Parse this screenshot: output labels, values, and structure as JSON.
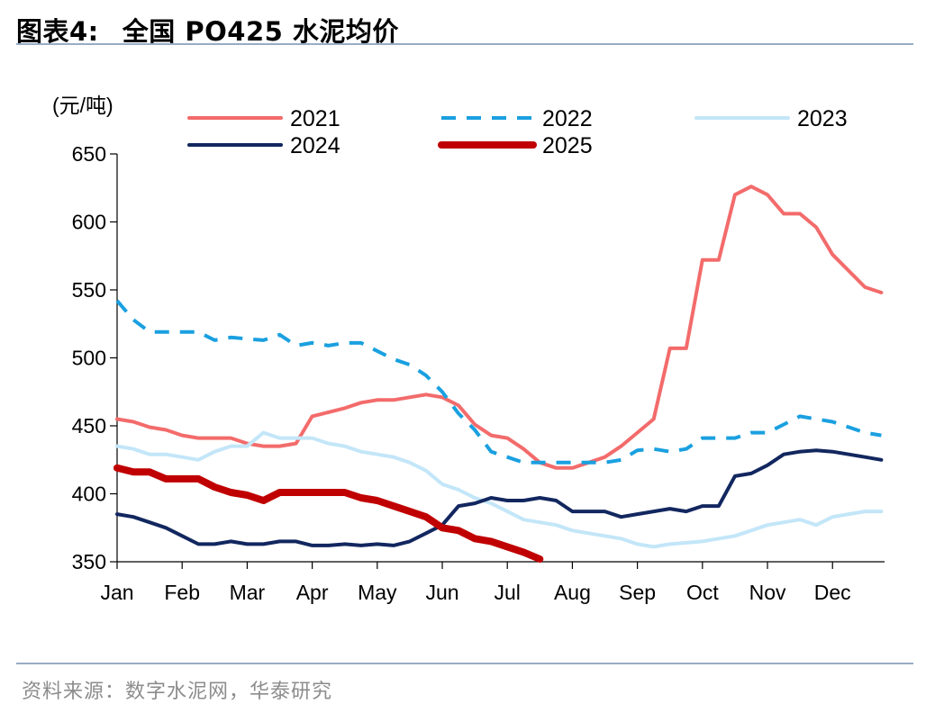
{
  "header": {
    "figure_label": "图表4:",
    "title": "全国 PO425 水泥均价"
  },
  "footer": {
    "source": "资料来源：数字水泥网，华泰研究"
  },
  "chart_data": {
    "type": "line",
    "unit_label": "(元/吨)",
    "xlabel": "",
    "ylabel": "",
    "ylim": [
      350,
      650
    ],
    "yticks": [
      350,
      400,
      450,
      500,
      550,
      600,
      650
    ],
    "xlim": [
      0,
      11.8
    ],
    "month_labels": [
      "Jan",
      "Feb",
      "Mar",
      "Apr",
      "May",
      "Jun",
      "Jul",
      "Aug",
      "Sep",
      "Oct",
      "Nov",
      "Dec"
    ],
    "grid": false,
    "legend_position": "top",
    "series": [
      {
        "name": "2021",
        "color": "#f36b6b",
        "style": "solid",
        "weight": "normal",
        "x": [
          0,
          0.25,
          0.5,
          0.75,
          1.0,
          1.25,
          1.5,
          1.75,
          2.0,
          2.25,
          2.5,
          2.75,
          3.0,
          3.25,
          3.5,
          3.75,
          4.0,
          4.25,
          4.5,
          4.75,
          5.0,
          5.25,
          5.5,
          5.75,
          6.0,
          6.25,
          6.5,
          6.75,
          7.0,
          7.25,
          7.5,
          7.75,
          8.0,
          8.25,
          8.5,
          8.75,
          9.0,
          9.25,
          9.5,
          9.75,
          10.0,
          10.25,
          10.5,
          10.75,
          11.0,
          11.25,
          11.5,
          11.75
        ],
        "values": [
          455,
          453,
          449,
          447,
          443,
          441,
          441,
          441,
          437,
          435,
          435,
          437,
          457,
          460,
          463,
          467,
          469,
          469,
          471,
          473,
          471,
          465,
          451,
          443,
          441,
          433,
          423,
          419,
          419,
          423,
          427,
          435,
          445,
          455,
          507,
          507,
          572,
          572,
          620,
          626,
          620,
          606,
          606,
          596,
          576,
          564,
          552,
          548
        ]
      },
      {
        "name": "2022",
        "color": "#1aa0e0",
        "style": "dashed",
        "weight": "normal",
        "x": [
          0,
          0.25,
          0.5,
          0.75,
          1.0,
          1.25,
          1.5,
          1.75,
          2.0,
          2.25,
          2.5,
          2.75,
          3.0,
          3.25,
          3.5,
          3.75,
          4.0,
          4.25,
          4.5,
          4.75,
          5.0,
          5.25,
          5.5,
          5.75,
          6.0,
          6.25,
          6.5,
          6.75,
          7.0,
          7.25,
          7.5,
          7.75,
          8.0,
          8.25,
          8.5,
          8.75,
          9.0,
          9.25,
          9.5,
          9.75,
          10.0,
          10.25,
          10.5,
          10.75,
          11.0,
          11.25,
          11.5,
          11.75
        ],
        "values": [
          542,
          528,
          519,
          519,
          519,
          519,
          513,
          515,
          514,
          513,
          517,
          509,
          511,
          509,
          511,
          511,
          505,
          499,
          495,
          487,
          475,
          459,
          447,
          431,
          427,
          423,
          423,
          423,
          423,
          423,
          423,
          425,
          432,
          433,
          431,
          433,
          441,
          441,
          441,
          445,
          445,
          451,
          457,
          455,
          453,
          449,
          445,
          443
        ]
      },
      {
        "name": "2023",
        "color": "#c3e6f8",
        "style": "solid",
        "weight": "normal",
        "x": [
          0,
          0.25,
          0.5,
          0.75,
          1.0,
          1.25,
          1.5,
          1.75,
          2.0,
          2.25,
          2.5,
          2.75,
          3.0,
          3.25,
          3.5,
          3.75,
          4.0,
          4.25,
          4.5,
          4.75,
          5.0,
          5.25,
          5.5,
          5.75,
          6.0,
          6.25,
          6.5,
          6.75,
          7.0,
          7.25,
          7.5,
          7.75,
          8.0,
          8.25,
          8.5,
          8.75,
          9.0,
          9.25,
          9.5,
          9.75,
          10.0,
          10.25,
          10.5,
          10.75,
          11.0,
          11.25,
          11.5,
          11.75
        ],
        "values": [
          435,
          433,
          429,
          429,
          427,
          425,
          431,
          435,
          435,
          445,
          441,
          441,
          441,
          437,
          435,
          431,
          429,
          427,
          423,
          417,
          407,
          403,
          397,
          393,
          387,
          381,
          379,
          377,
          373,
          371,
          369,
          367,
          363,
          361,
          363,
          364,
          365,
          367,
          369,
          373,
          377,
          379,
          381,
          377,
          383,
          385,
          387,
          387
        ]
      },
      {
        "name": "2024",
        "color": "#12275f",
        "style": "solid",
        "weight": "normal",
        "x": [
          0,
          0.25,
          0.5,
          0.75,
          1.0,
          1.25,
          1.5,
          1.75,
          2.0,
          2.25,
          2.5,
          2.75,
          3.0,
          3.25,
          3.5,
          3.75,
          4.0,
          4.25,
          4.5,
          4.75,
          5.0,
          5.25,
          5.5,
          5.75,
          6.0,
          6.25,
          6.5,
          6.75,
          7.0,
          7.25,
          7.5,
          7.75,
          8.0,
          8.25,
          8.5,
          8.75,
          9.0,
          9.25,
          9.5,
          9.75,
          10.0,
          10.25,
          10.5,
          10.75,
          11.0,
          11.25,
          11.5,
          11.75
        ],
        "values": [
          385,
          383,
          379,
          375,
          369,
          363,
          363,
          365,
          363,
          363,
          365,
          365,
          362,
          362,
          363,
          362,
          363,
          362,
          365,
          371,
          377,
          391,
          393,
          397,
          395,
          395,
          397,
          395,
          387,
          387,
          387,
          383,
          385,
          387,
          389,
          387,
          391,
          391,
          413,
          415,
          421,
          429,
          431,
          432,
          431,
          429,
          427,
          425
        ]
      },
      {
        "name": "2025",
        "color": "#c00000",
        "style": "solid",
        "weight": "bold",
        "x": [
          0,
          0.25,
          0.5,
          0.75,
          1.0,
          1.25,
          1.5,
          1.75,
          2.0,
          2.25,
          2.5,
          2.75,
          3.0,
          3.25,
          3.5,
          3.75,
          4.0,
          4.25,
          4.5,
          4.75,
          5.0,
          5.25,
          5.5,
          5.75,
          6.0,
          6.25,
          6.5
        ],
        "values": [
          419,
          416,
          416,
          411,
          411,
          411,
          405,
          401,
          399,
          395,
          401,
          401,
          401,
          401,
          401,
          397,
          395,
          391,
          387,
          383,
          375,
          373,
          367,
          365,
          361,
          357,
          352
        ]
      }
    ]
  }
}
